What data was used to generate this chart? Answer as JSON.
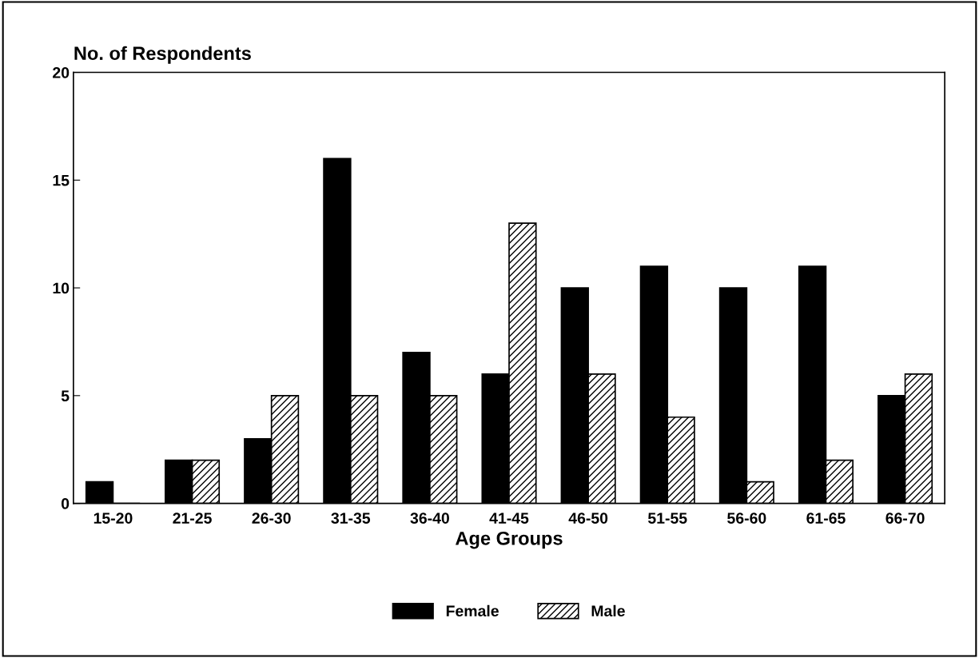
{
  "chart_data": {
    "type": "bar",
    "xlabel": "Age Groups",
    "ylabel": "No. of Respondents",
    "categories": [
      "15-20",
      "21-25",
      "26-30",
      "31-35",
      "36-40",
      "41-45",
      "46-50",
      "51-55",
      "56-60",
      "61-65",
      "66-70"
    ],
    "series": [
      {
        "name": "Female",
        "color": "#000000",
        "values": [
          1,
          2,
          3,
          16,
          7,
          6,
          10,
          11,
          10,
          11,
          5
        ]
      },
      {
        "name": "Male",
        "color": "#000000",
        "values": [
          0,
          2,
          5,
          5,
          5,
          13,
          6,
          4,
          1,
          2,
          6
        ]
      }
    ],
    "ylim": [
      0,
      20
    ],
    "yticks": [
      0,
      5,
      10,
      15,
      20
    ],
    "grid": false,
    "legend": "bottom"
  }
}
